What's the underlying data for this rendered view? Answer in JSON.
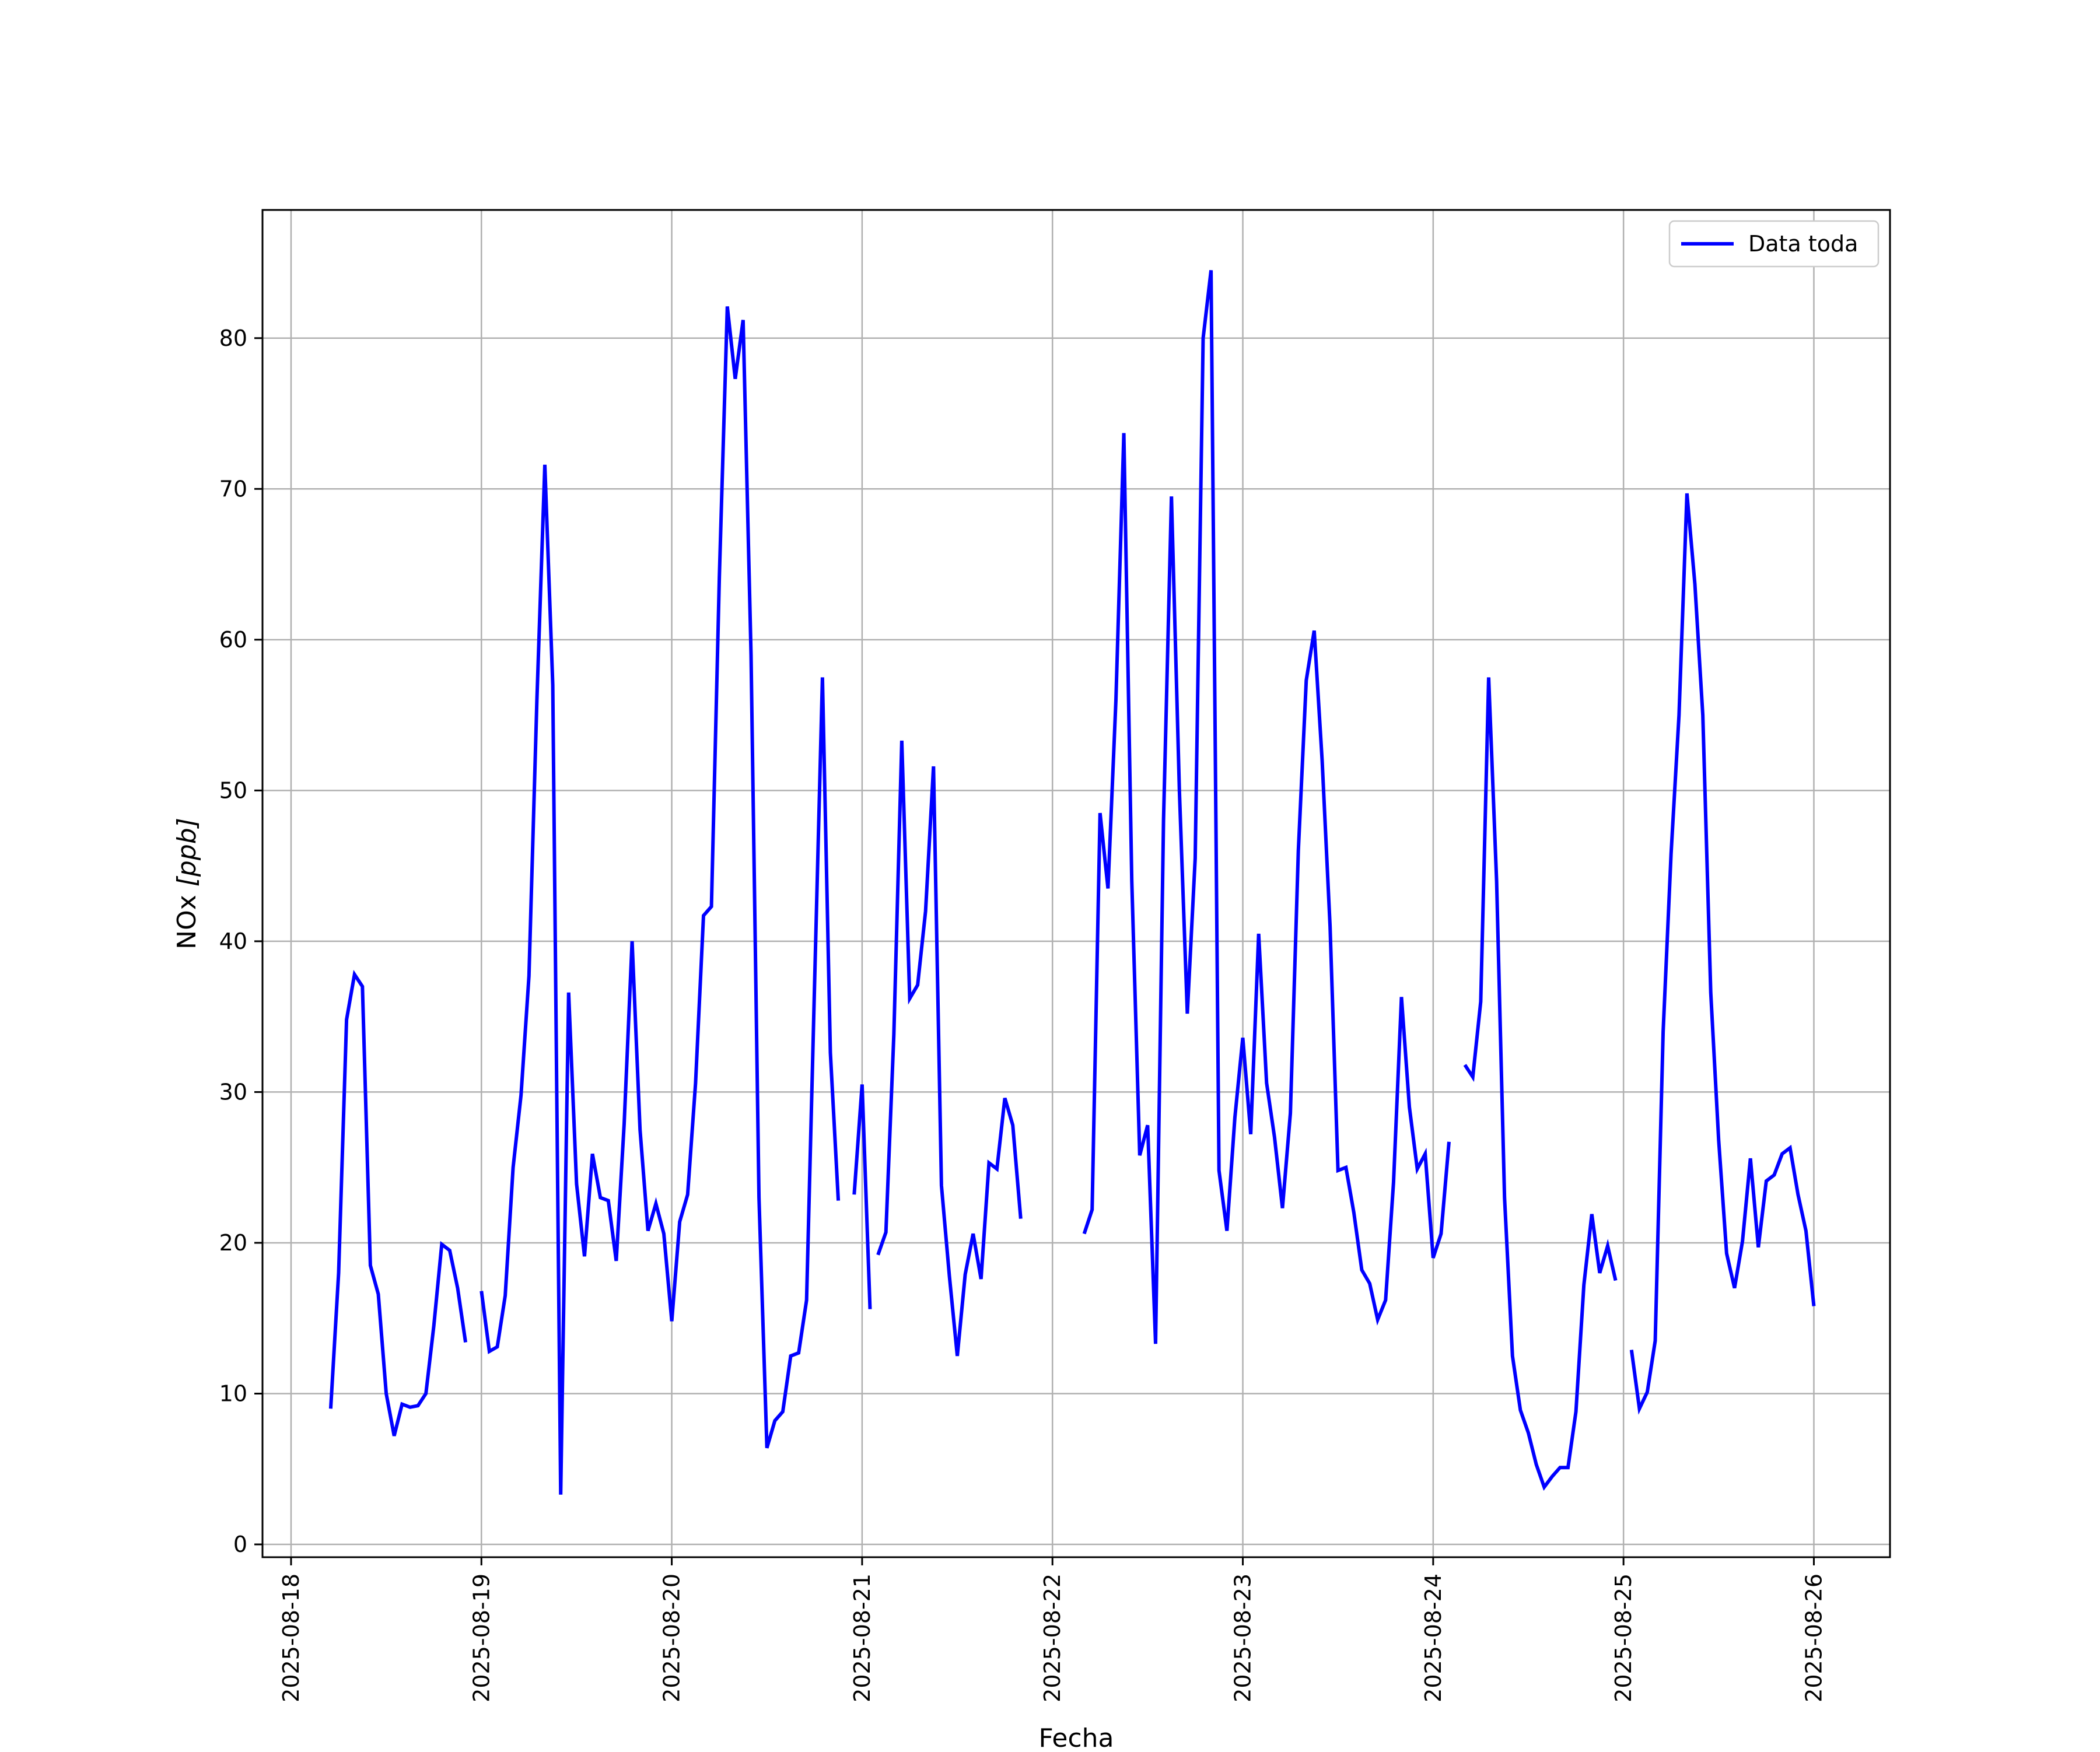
{
  "chart_data": {
    "type": "line",
    "title": "",
    "xlabel": "Fecha",
    "ylabel": "NOx [ppb]",
    "ylabel_main": "NOx ",
    "ylabel_unit": "[ppb]",
    "xlim": [
      "2025-08-17 20:24",
      "2025-08-26 09:36"
    ],
    "ylim": [
      -0.85,
      88.5
    ],
    "x_ticks": [
      "2025-08-18",
      "2025-08-19",
      "2025-08-20",
      "2025-08-21",
      "2025-08-22",
      "2025-08-23",
      "2025-08-24",
      "2025-08-25",
      "2025-08-26"
    ],
    "y_ticks": [
      0,
      10,
      20,
      30,
      40,
      50,
      60,
      70,
      80
    ],
    "grid": true,
    "legend_position": "top-right",
    "colors": {
      "line": "#0000ff",
      "grid": "#b0b0b0",
      "axes": "#000000"
    },
    "series": [
      {
        "name": "Data toda",
        "segments": [
          [
            [
              "2025-08-18 05:00",
              9.0
            ],
            [
              "2025-08-18 06:00",
              18.0
            ],
            [
              "2025-08-18 07:00",
              34.8
            ],
            [
              "2025-08-18 08:00",
              37.8
            ],
            [
              "2025-08-18 09:00",
              37.0
            ],
            [
              "2025-08-18 10:00",
              18.5
            ],
            [
              "2025-08-18 11:00",
              16.6
            ],
            [
              "2025-08-18 12:00",
              10.0
            ],
            [
              "2025-08-18 13:00",
              7.2
            ],
            [
              "2025-08-18 14:00",
              9.3
            ],
            [
              "2025-08-18 15:00",
              9.1
            ],
            [
              "2025-08-18 16:00",
              9.2
            ],
            [
              "2025-08-18 17:00",
              10.0
            ],
            [
              "2025-08-18 18:00",
              14.5
            ],
            [
              "2025-08-18 19:00",
              19.9
            ],
            [
              "2025-08-18 20:00",
              19.5
            ],
            [
              "2025-08-18 21:00",
              17.0
            ],
            [
              "2025-08-18 22:00",
              13.4
            ]
          ],
          [
            [
              "2025-08-19 00:00",
              16.8
            ],
            [
              "2025-08-19 01:00",
              12.8
            ],
            [
              "2025-08-19 02:00",
              13.1
            ],
            [
              "2025-08-19 03:00",
              16.5
            ],
            [
              "2025-08-19 04:00",
              25.0
            ],
            [
              "2025-08-19 05:00",
              29.8
            ],
            [
              "2025-08-19 06:00",
              37.7
            ],
            [
              "2025-08-19 07:00",
              56.0
            ],
            [
              "2025-08-19 08:00",
              71.6
            ],
            [
              "2025-08-19 09:00",
              57.0
            ],
            [
              "2025-08-19 10:00",
              3.3
            ],
            [
              "2025-08-19 11:00",
              36.6
            ],
            [
              "2025-08-19 12:00",
              23.9
            ],
            [
              "2025-08-19 13:00",
              19.1
            ],
            [
              "2025-08-19 14:00",
              25.9
            ],
            [
              "2025-08-19 15:00",
              23.0
            ],
            [
              "2025-08-19 16:00",
              22.8
            ],
            [
              "2025-08-19 17:00",
              18.8
            ],
            [
              "2025-08-19 18:00",
              27.9
            ],
            [
              "2025-08-19 19:00",
              40.0
            ],
            [
              "2025-08-19 20:00",
              27.5
            ],
            [
              "2025-08-19 21:00",
              20.8
            ],
            [
              "2025-08-19 22:00",
              22.6
            ],
            [
              "2025-08-19 23:00",
              20.6
            ],
            [
              "2025-08-20 00:00",
              14.8
            ],
            [
              "2025-08-20 01:00",
              21.4
            ],
            [
              "2025-08-20 02:00",
              23.2
            ],
            [
              "2025-08-20 03:00",
              30.6
            ],
            [
              "2025-08-20 04:00",
              41.7
            ],
            [
              "2025-08-20 05:00",
              42.3
            ],
            [
              "2025-08-20 06:00",
              64.2
            ],
            [
              "2025-08-20 07:00",
              82.1
            ],
            [
              "2025-08-20 08:00",
              77.3
            ],
            [
              "2025-08-20 09:00",
              81.2
            ],
            [
              "2025-08-20 10:00",
              59.0
            ],
            [
              "2025-08-20 11:00",
              23.0
            ],
            [
              "2025-08-20 12:00",
              6.4
            ],
            [
              "2025-08-20 13:00",
              8.2
            ],
            [
              "2025-08-20 14:00",
              8.8
            ],
            [
              "2025-08-20 15:00",
              12.5
            ],
            [
              "2025-08-20 16:00",
              12.7
            ],
            [
              "2025-08-20 17:00",
              16.2
            ],
            [
              "2025-08-20 18:00",
              37.0
            ],
            [
              "2025-08-20 19:00",
              57.5
            ],
            [
              "2025-08-20 20:00",
              32.6
            ],
            [
              "2025-08-20 21:00",
              22.8
            ]
          ],
          [
            [
              "2025-08-20 23:00",
              23.2
            ],
            [
              "2025-08-21 00:00",
              30.5
            ],
            [
              "2025-08-21 01:00",
              15.6
            ]
          ],
          [
            [
              "2025-08-21 02:00",
              19.2
            ],
            [
              "2025-08-21 03:00",
              20.7
            ],
            [
              "2025-08-21 04:00",
              33.8
            ],
            [
              "2025-08-21 05:00",
              53.3
            ],
            [
              "2025-08-21 06:00",
              36.2
            ],
            [
              "2025-08-21 07:00",
              37.1
            ],
            [
              "2025-08-21 08:00",
              42.0
            ],
            [
              "2025-08-21 09:00",
              51.6
            ],
            [
              "2025-08-21 10:00",
              23.8
            ],
            [
              "2025-08-21 11:00",
              17.8
            ],
            [
              "2025-08-21 12:00",
              12.5
            ],
            [
              "2025-08-21 13:00",
              17.9
            ],
            [
              "2025-08-21 14:00",
              20.6
            ],
            [
              "2025-08-21 15:00",
              17.6
            ],
            [
              "2025-08-21 16:00",
              25.3
            ],
            [
              "2025-08-21 17:00",
              24.9
            ],
            [
              "2025-08-21 18:00",
              29.6
            ],
            [
              "2025-08-21 19:00",
              27.8
            ],
            [
              "2025-08-21 20:00",
              21.6
            ]
          ],
          [
            [
              "2025-08-22 04:00",
              20.6
            ],
            [
              "2025-08-22 05:00",
              22.2
            ],
            [
              "2025-08-22 06:00",
              48.5
            ],
            [
              "2025-08-22 07:00",
              43.5
            ],
            [
              "2025-08-22 08:00",
              56.0
            ],
            [
              "2025-08-22 09:00",
              73.7
            ],
            [
              "2025-08-22 10:00",
              44.0
            ],
            [
              "2025-08-22 11:00",
              25.8
            ],
            [
              "2025-08-22 12:00",
              27.8
            ],
            [
              "2025-08-22 13:00",
              13.3
            ],
            [
              "2025-08-22 14:00",
              48.0
            ],
            [
              "2025-08-22 15:00",
              69.5
            ],
            [
              "2025-08-22 16:00",
              50.0
            ],
            [
              "2025-08-22 17:00",
              35.2
            ],
            [
              "2025-08-22 18:00",
              45.5
            ],
            [
              "2025-08-22 19:00",
              80.0
            ],
            [
              "2025-08-22 20:00",
              84.5
            ],
            [
              "2025-08-22 21:00",
              24.8
            ],
            [
              "2025-08-22 22:00",
              20.8
            ],
            [
              "2025-08-22 23:00",
              28.3
            ],
            [
              "2025-08-23 00:00",
              33.6
            ],
            [
              "2025-08-23 01:00",
              27.2
            ],
            [
              "2025-08-23 02:00",
              40.5
            ],
            [
              "2025-08-23 03:00",
              30.6
            ],
            [
              "2025-08-23 04:00",
              27.0
            ],
            [
              "2025-08-23 05:00",
              22.3
            ],
            [
              "2025-08-23 06:00",
              28.6
            ],
            [
              "2025-08-23 07:00",
              46.0
            ],
            [
              "2025-08-23 08:00",
              57.3
            ],
            [
              "2025-08-23 09:00",
              60.6
            ],
            [
              "2025-08-23 10:00",
              52.0
            ],
            [
              "2025-08-23 11:00",
              41.0
            ],
            [
              "2025-08-23 12:00",
              24.8
            ],
            [
              "2025-08-23 13:00",
              25.0
            ],
            [
              "2025-08-23 14:00",
              22.0
            ],
            [
              "2025-08-23 15:00",
              18.2
            ],
            [
              "2025-08-23 16:00",
              17.3
            ],
            [
              "2025-08-23 17:00",
              14.9
            ],
            [
              "2025-08-23 18:00",
              16.2
            ],
            [
              "2025-08-23 19:00",
              24.0
            ],
            [
              "2025-08-23 20:00",
              36.3
            ],
            [
              "2025-08-23 21:00",
              29.0
            ],
            [
              "2025-08-23 22:00",
              24.9
            ],
            [
              "2025-08-23 23:00",
              25.9
            ],
            [
              "2025-08-24 00:00",
              19.0
            ],
            [
              "2025-08-24 01:00",
              20.6
            ],
            [
              "2025-08-24 02:00",
              26.7
            ]
          ],
          [
            [
              "2025-08-24 04:00",
              31.8
            ],
            [
              "2025-08-24 05:00",
              31.0
            ],
            [
              "2025-08-24 06:00",
              36.0
            ],
            [
              "2025-08-24 07:00",
              57.5
            ],
            [
              "2025-08-24 08:00",
              44.0
            ],
            [
              "2025-08-24 09:00",
              23.0
            ],
            [
              "2025-08-24 10:00",
              12.5
            ],
            [
              "2025-08-24 11:00",
              8.9
            ],
            [
              "2025-08-24 12:00",
              7.4
            ],
            [
              "2025-08-24 13:00",
              5.3
            ],
            [
              "2025-08-24 14:00",
              3.8
            ],
            [
              "2025-08-24 15:00",
              4.5
            ],
            [
              "2025-08-24 16:00",
              5.1
            ],
            [
              "2025-08-24 17:00",
              5.1
            ],
            [
              "2025-08-24 18:00",
              8.8
            ],
            [
              "2025-08-24 19:00",
              17.2
            ],
            [
              "2025-08-24 20:00",
              21.9
            ],
            [
              "2025-08-24 21:00",
              18.0
            ],
            [
              "2025-08-24 22:00",
              19.8
            ],
            [
              "2025-08-24 23:00",
              17.5
            ]
          ],
          [
            [
              "2025-08-25 01:00",
              12.9
            ],
            [
              "2025-08-25 02:00",
              9.0
            ],
            [
              "2025-08-25 03:00",
              10.1
            ],
            [
              "2025-08-25 04:00",
              13.5
            ],
            [
              "2025-08-25 05:00",
              34.0
            ],
            [
              "2025-08-25 06:00",
              45.8
            ],
            [
              "2025-08-25 07:00",
              55.0
            ],
            [
              "2025-08-25 08:00",
              69.7
            ],
            [
              "2025-08-25 09:00",
              63.7
            ],
            [
              "2025-08-25 10:00",
              55.0
            ],
            [
              "2025-08-25 11:00",
              36.6
            ],
            [
              "2025-08-25 12:00",
              26.8
            ],
            [
              "2025-08-25 13:00",
              19.3
            ],
            [
              "2025-08-25 14:00",
              17.0
            ],
            [
              "2025-08-25 15:00",
              20.1
            ],
            [
              "2025-08-25 16:00",
              25.6
            ],
            [
              "2025-08-25 17:00",
              19.7
            ],
            [
              "2025-08-25 18:00",
              24.1
            ],
            [
              "2025-08-25 19:00",
              24.5
            ],
            [
              "2025-08-25 20:00",
              25.9
            ],
            [
              "2025-08-25 21:00",
              26.3
            ],
            [
              "2025-08-25 22:00",
              23.2
            ],
            [
              "2025-08-25 23:00",
              20.8
            ],
            [
              "2025-08-26 00:00",
              15.8
            ]
          ]
        ]
      }
    ]
  }
}
